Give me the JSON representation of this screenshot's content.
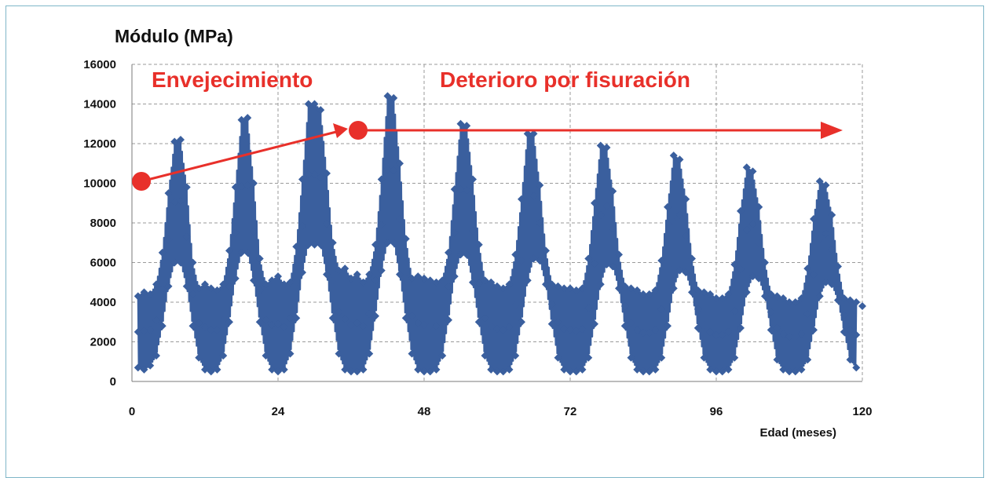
{
  "chart_data": {
    "type": "line",
    "title": "Módulo (MPa)",
    "xlabel": "Edad (meses)",
    "ylabel": "",
    "xlim": [
      0,
      120
    ],
    "ylim": [
      0,
      16000
    ],
    "x_ticks": [
      0,
      24,
      48,
      72,
      96,
      120
    ],
    "y_ticks": [
      0,
      2000,
      4000,
      6000,
      8000,
      10000,
      12000,
      14000,
      16000
    ],
    "grid": true,
    "series_color": "#3a5f9e",
    "annotation_color": "#e8302a",
    "series": [
      {
        "x": [
          1,
          2,
          3,
          4,
          5,
          6,
          7,
          8,
          9,
          10,
          11,
          12,
          13,
          14,
          15,
          16,
          17,
          18,
          19,
          20,
          21,
          22,
          23,
          24,
          25,
          26,
          27,
          28,
          29,
          30,
          31,
          32,
          33,
          34,
          35,
          36,
          37,
          38,
          39,
          40,
          41,
          42,
          43,
          44,
          45,
          46,
          47,
          48,
          49,
          50,
          51,
          52,
          53,
          54,
          55,
          56,
          57,
          58,
          59,
          60,
          61,
          62,
          63,
          64,
          65,
          66,
          67,
          68,
          69,
          70,
          71,
          72,
          73,
          74,
          75,
          76,
          77,
          78,
          79,
          80,
          81,
          82,
          83,
          84,
          85,
          86,
          87,
          88,
          89,
          90,
          91,
          92,
          93,
          94,
          95,
          96,
          97,
          98,
          99,
          100,
          101,
          102,
          103,
          104,
          105,
          106,
          107,
          108,
          109,
          110,
          111,
          112,
          113,
          114,
          115,
          116,
          117,
          118,
          119,
          120
        ],
        "peak": [
          4300,
          4500,
          4400,
          4900,
          6500,
          9500,
          12100,
          12200,
          9800,
          6000,
          4700,
          4900,
          4700,
          4600,
          4900,
          6600,
          9800,
          13200,
          13300,
          10000,
          6200,
          4900,
          5100,
          5300,
          4900,
          5000,
          6800,
          10200,
          14000,
          14000,
          13700,
          10500,
          7000,
          5600,
          5700,
          5200,
          5400,
          5000,
          5400,
          6900,
          10200,
          14400,
          14300,
          11000,
          7200,
          5200,
          5300,
          5200,
          5100,
          5000,
          5100,
          6500,
          9700,
          13000,
          12900,
          10200,
          6900,
          5100,
          5000,
          4800,
          4700,
          4900,
          6400,
          9200,
          12500,
          12500,
          9900,
          6600,
          4900,
          4800,
          4700,
          4700,
          4600,
          4700,
          6200,
          9000,
          11900,
          11800,
          9600,
          6400,
          4800,
          4700,
          4600,
          4400,
          4400,
          4600,
          6100,
          8800,
          11400,
          11200,
          9200,
          6200,
          4600,
          4500,
          4400,
          4200,
          4200,
          4400,
          5900,
          8600,
          10800,
          10600,
          8800,
          6000,
          4400,
          4300,
          4200,
          4000,
          4000,
          4200,
          5700,
          8200,
          10100,
          9900,
          8400,
          5800,
          4200,
          4100,
          4000,
          3800
        ],
        "trough": [
          700,
          600,
          800,
          1300,
          2800,
          4800,
          6000,
          6000,
          4800,
          2800,
          1200,
          600,
          500,
          600,
          1300,
          3000,
          5200,
          6500,
          6500,
          5100,
          3000,
          1300,
          600,
          500,
          600,
          1400,
          3200,
          5500,
          6900,
          6900,
          6900,
          5400,
          3200,
          1400,
          600,
          500,
          500,
          600,
          1400,
          3300,
          5600,
          7000,
          7000,
          5400,
          3200,
          1400,
          600,
          500,
          500,
          600,
          1300,
          3100,
          5300,
          6400,
          6400,
          5000,
          3000,
          1300,
          600,
          500,
          500,
          600,
          1300,
          3000,
          5100,
          6200,
          6100,
          4900,
          2900,
          1200,
          600,
          500,
          500,
          600,
          1200,
          2900,
          4900,
          5900,
          5800,
          4700,
          2800,
          1200,
          600,
          500,
          500,
          600,
          1200,
          2800,
          4700,
          5600,
          5500,
          4500,
          2700,
          1200,
          600,
          500,
          500,
          600,
          1200,
          2700,
          4500,
          5300,
          5200,
          4300,
          2600,
          1100,
          600,
          500,
          500,
          600,
          1100,
          2600,
          4300,
          5000,
          4900,
          4100,
          2500,
          1100,
          700
        ]
      }
    ],
    "annotations": [
      {
        "text": "Envejecimiento",
        "x": 1,
        "y": 10000
      },
      {
        "text": "Deterioro por fisuración",
        "x": 37,
        "y": 12600
      }
    ]
  }
}
